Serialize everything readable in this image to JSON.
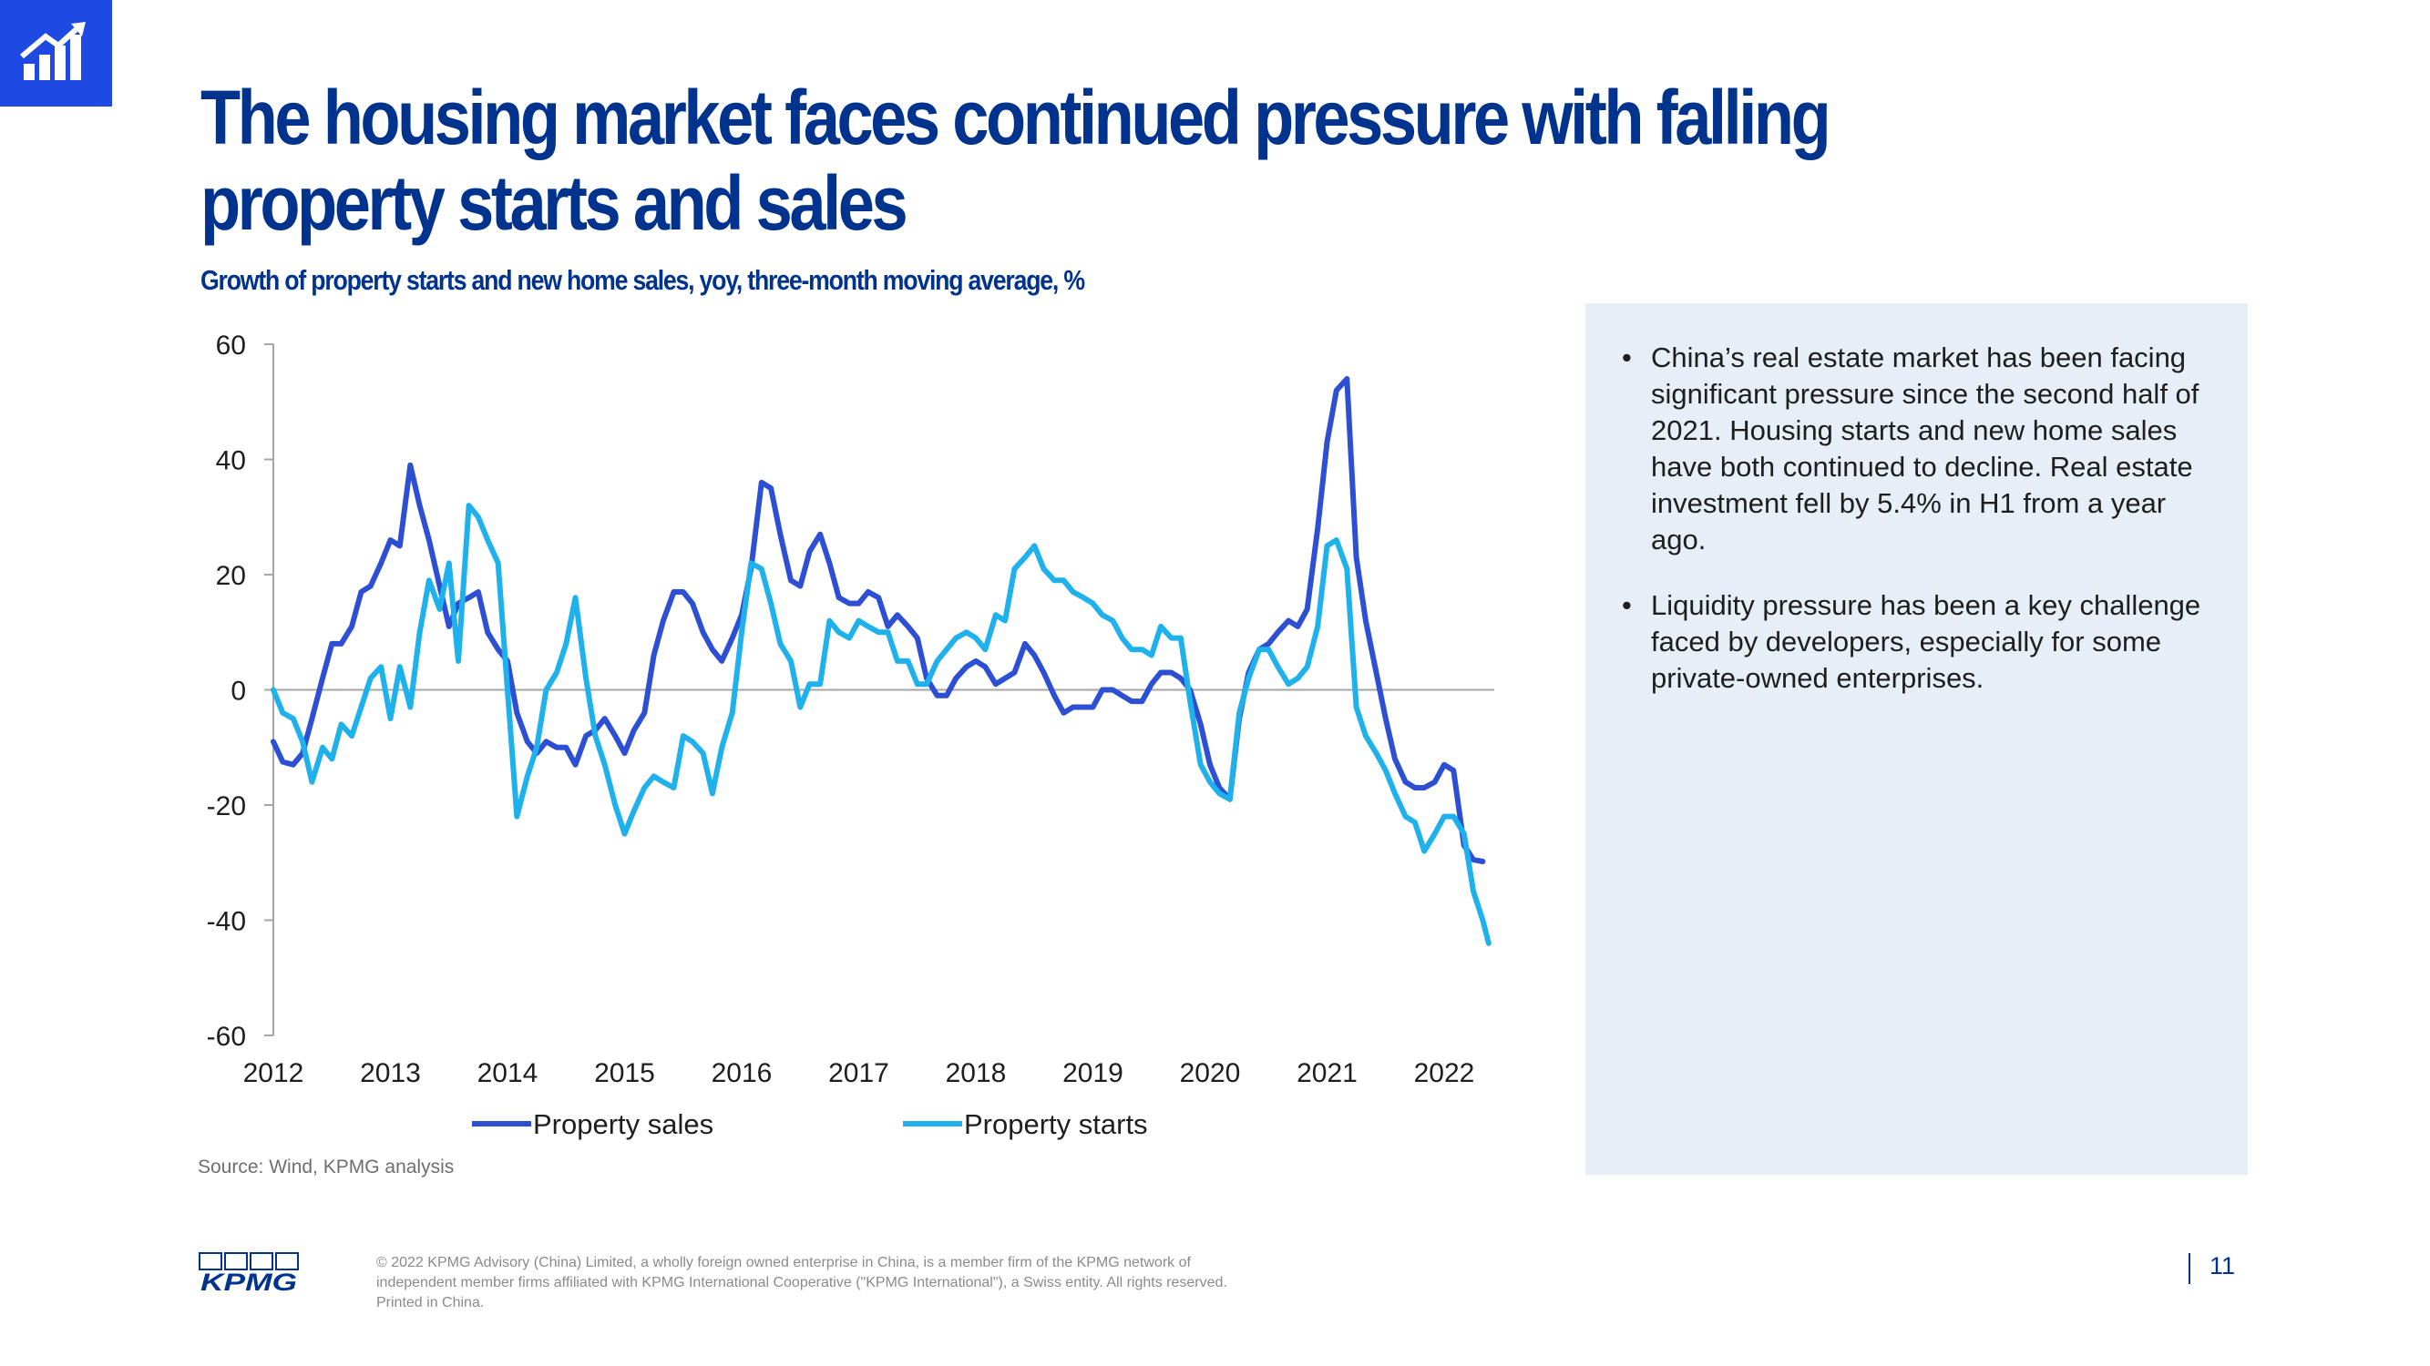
{
  "slide": {
    "title": "The housing market faces continued pressure with falling property starts and sales",
    "subtitle": "Growth of property starts and new home sales, yoy, three-month moving average, %",
    "source": "Source: Wind, KPMG analysis",
    "page_number": "11",
    "bullets": [
      "China’s real estate market has been facing significant pressure since the second half of 2021. Housing starts and new home sales have both continued to decline. Real estate investment fell by 5.4% in H1 from a year ago.",
      "Liquidity pressure has been a key challenge faced by developers, especially for some private-owned enterprises."
    ],
    "footer_lines": [
      "© 2022 KPMG Advisory (China) Limited, a wholly foreign owned enterprise in China, is a member firm of the KPMG network of",
      "independent member firms affiliated with KPMG International Cooperative (\"KPMG International\"), a Swiss entity. All rights reserved.",
      "Printed in China."
    ],
    "logo_text": "KPMG",
    "badge_icon": "bar-chart-growth-icon"
  },
  "colors": {
    "title": "#00338d",
    "badge": "#1e49e2",
    "property_sales": "#2d4fd3",
    "property_starts": "#1fb1ec",
    "panel": "#e6eef8"
  },
  "chart_data": {
    "type": "line",
    "title": "Growth of property starts and new home sales, yoy, three-month moving average, %",
    "xlabel": "",
    "ylabel": "",
    "ylim": [
      -60,
      60
    ],
    "yticks": [
      "60",
      "40",
      "20",
      "0",
      "-20",
      "-40",
      "-60"
    ],
    "xticks": [
      "2012",
      "2013",
      "2014",
      "2015",
      "2016",
      "2017",
      "2018",
      "2019",
      "2020",
      "2021",
      "2022"
    ],
    "xlim": [
      2012,
      2022.4
    ],
    "legend": "bottom",
    "grid": false,
    "series": [
      {
        "name": "Property sales",
        "color": "#2d4fd3",
        "points": [
          [
            2012.0,
            -9
          ],
          [
            2012.08,
            -12.5
          ],
          [
            2012.17,
            -13
          ],
          [
            2012.25,
            -11
          ],
          [
            2012.33,
            -5
          ],
          [
            2012.42,
            2
          ],
          [
            2012.5,
            8
          ],
          [
            2012.58,
            8
          ],
          [
            2012.67,
            11
          ],
          [
            2012.75,
            17
          ],
          [
            2012.83,
            18
          ],
          [
            2012.92,
            22
          ],
          [
            2013.0,
            26
          ],
          [
            2013.08,
            25
          ],
          [
            2013.17,
            39
          ],
          [
            2013.25,
            32
          ],
          [
            2013.33,
            26
          ],
          [
            2013.42,
            18
          ],
          [
            2013.5,
            11
          ],
          [
            2013.58,
            15
          ],
          [
            2013.67,
            16
          ],
          [
            2013.75,
            17
          ],
          [
            2013.83,
            10
          ],
          [
            2013.92,
            7
          ],
          [
            2014.0,
            5
          ],
          [
            2014.08,
            -4
          ],
          [
            2014.17,
            -9
          ],
          [
            2014.25,
            -11
          ],
          [
            2014.33,
            -9
          ],
          [
            2014.42,
            -10
          ],
          [
            2014.5,
            -10
          ],
          [
            2014.58,
            -13
          ],
          [
            2014.67,
            -8
          ],
          [
            2014.75,
            -7
          ],
          [
            2014.83,
            -5
          ],
          [
            2014.92,
            -8
          ],
          [
            2015.0,
            -11
          ],
          [
            2015.08,
            -7
          ],
          [
            2015.17,
            -4
          ],
          [
            2015.25,
            6
          ],
          [
            2015.33,
            12
          ],
          [
            2015.42,
            17
          ],
          [
            2015.5,
            17
          ],
          [
            2015.58,
            15
          ],
          [
            2015.67,
            10
          ],
          [
            2015.75,
            7
          ],
          [
            2015.83,
            5
          ],
          [
            2015.92,
            9
          ],
          [
            2016.0,
            13
          ],
          [
            2016.08,
            21
          ],
          [
            2016.17,
            36
          ],
          [
            2016.25,
            35
          ],
          [
            2016.33,
            27
          ],
          [
            2016.42,
            19
          ],
          [
            2016.5,
            18
          ],
          [
            2016.58,
            24
          ],
          [
            2016.67,
            27
          ],
          [
            2016.75,
            22
          ],
          [
            2016.83,
            16
          ],
          [
            2016.92,
            15
          ],
          [
            2017.0,
            15
          ],
          [
            2017.08,
            17
          ],
          [
            2017.17,
            16
          ],
          [
            2017.25,
            11
          ],
          [
            2017.33,
            13
          ],
          [
            2017.42,
            11
          ],
          [
            2017.5,
            9
          ],
          [
            2017.58,
            2
          ],
          [
            2017.67,
            -1
          ],
          [
            2017.75,
            -1
          ],
          [
            2017.83,
            2
          ],
          [
            2017.92,
            4
          ],
          [
            2018.0,
            5
          ],
          [
            2018.08,
            4
          ],
          [
            2018.17,
            1
          ],
          [
            2018.25,
            2
          ],
          [
            2018.33,
            3
          ],
          [
            2018.42,
            8
          ],
          [
            2018.5,
            6
          ],
          [
            2018.58,
            3
          ],
          [
            2018.67,
            -1
          ],
          [
            2018.75,
            -4
          ],
          [
            2018.83,
            -3
          ],
          [
            2018.92,
            -3
          ],
          [
            2019.0,
            -3
          ],
          [
            2019.08,
            0
          ],
          [
            2019.17,
            0
          ],
          [
            2019.25,
            -1
          ],
          [
            2019.33,
            -2
          ],
          [
            2019.42,
            -2
          ],
          [
            2019.5,
            1
          ],
          [
            2019.58,
            3
          ],
          [
            2019.67,
            3
          ],
          [
            2019.75,
            2
          ],
          [
            2019.83,
            0
          ],
          [
            2019.92,
            -6
          ],
          [
            2020.0,
            -13
          ],
          [
            2020.08,
            -17
          ],
          [
            2020.17,
            -19
          ],
          [
            2020.25,
            -5
          ],
          [
            2020.33,
            3
          ],
          [
            2020.42,
            7
          ],
          [
            2020.5,
            8
          ],
          [
            2020.58,
            10
          ],
          [
            2020.67,
            12
          ],
          [
            2020.75,
            11
          ],
          [
            2020.83,
            14
          ],
          [
            2020.92,
            28
          ],
          [
            2021.0,
            43
          ],
          [
            2021.08,
            52
          ],
          [
            2021.17,
            54
          ],
          [
            2021.25,
            23
          ],
          [
            2021.33,
            12
          ],
          [
            2021.42,
            3
          ],
          [
            2021.5,
            -5
          ],
          [
            2021.58,
            -12
          ],
          [
            2021.67,
            -16
          ],
          [
            2021.75,
            -17
          ],
          [
            2021.83,
            -17
          ],
          [
            2021.92,
            -16
          ],
          [
            2022.0,
            -13
          ],
          [
            2022.08,
            -14
          ],
          [
            2022.17,
            -27
          ],
          [
            2022.25,
            -29.5
          ],
          [
            2022.33,
            -29.8
          ]
        ]
      },
      {
        "name": "Property starts",
        "color": "#1fb1ec",
        "points": [
          [
            2012.0,
            0
          ],
          [
            2012.08,
            -4
          ],
          [
            2012.17,
            -5
          ],
          [
            2012.25,
            -9
          ],
          [
            2012.33,
            -16
          ],
          [
            2012.42,
            -10
          ],
          [
            2012.5,
            -12
          ],
          [
            2012.58,
            -6
          ],
          [
            2012.67,
            -8
          ],
          [
            2012.75,
            -3
          ],
          [
            2012.83,
            2
          ],
          [
            2012.92,
            4
          ],
          [
            2013.0,
            -5
          ],
          [
            2013.08,
            4
          ],
          [
            2013.17,
            -3
          ],
          [
            2013.25,
            10
          ],
          [
            2013.33,
            19
          ],
          [
            2013.42,
            14
          ],
          [
            2013.5,
            22
          ],
          [
            2013.58,
            5
          ],
          [
            2013.67,
            32
          ],
          [
            2013.75,
            30
          ],
          [
            2013.83,
            26
          ],
          [
            2013.92,
            22
          ],
          [
            2014.0,
            0
          ],
          [
            2014.08,
            -22
          ],
          [
            2014.17,
            -15
          ],
          [
            2014.25,
            -10
          ],
          [
            2014.33,
            0
          ],
          [
            2014.42,
            3
          ],
          [
            2014.5,
            8
          ],
          [
            2014.58,
            16
          ],
          [
            2014.67,
            2
          ],
          [
            2014.75,
            -8
          ],
          [
            2014.83,
            -13
          ],
          [
            2014.92,
            -20
          ],
          [
            2015.0,
            -25
          ],
          [
            2015.08,
            -21
          ],
          [
            2015.17,
            -17
          ],
          [
            2015.25,
            -15
          ],
          [
            2015.33,
            -16
          ],
          [
            2015.42,
            -17
          ],
          [
            2015.5,
            -8
          ],
          [
            2015.58,
            -9
          ],
          [
            2015.67,
            -11
          ],
          [
            2015.75,
            -18
          ],
          [
            2015.83,
            -10
          ],
          [
            2015.92,
            -4
          ],
          [
            2016.0,
            10
          ],
          [
            2016.08,
            22
          ],
          [
            2016.17,
            21
          ],
          [
            2016.25,
            15
          ],
          [
            2016.33,
            8
          ],
          [
            2016.42,
            5
          ],
          [
            2016.5,
            -3
          ],
          [
            2016.58,
            1
          ],
          [
            2016.67,
            1
          ],
          [
            2016.75,
            12
          ],
          [
            2016.83,
            10
          ],
          [
            2016.92,
            9
          ],
          [
            2017.0,
            12
          ],
          [
            2017.08,
            11
          ],
          [
            2017.17,
            10
          ],
          [
            2017.25,
            10
          ],
          [
            2017.33,
            5
          ],
          [
            2017.42,
            5
          ],
          [
            2017.5,
            1
          ],
          [
            2017.58,
            1
          ],
          [
            2017.67,
            5
          ],
          [
            2017.75,
            7
          ],
          [
            2017.83,
            9
          ],
          [
            2017.92,
            10
          ],
          [
            2018.0,
            9
          ],
          [
            2018.08,
            7
          ],
          [
            2018.17,
            13
          ],
          [
            2018.25,
            12
          ],
          [
            2018.33,
            21
          ],
          [
            2018.42,
            23
          ],
          [
            2018.5,
            25
          ],
          [
            2018.58,
            21
          ],
          [
            2018.67,
            19
          ],
          [
            2018.75,
            19
          ],
          [
            2018.83,
            17
          ],
          [
            2018.92,
            16
          ],
          [
            2019.0,
            15
          ],
          [
            2019.08,
            13
          ],
          [
            2019.17,
            12
          ],
          [
            2019.25,
            9
          ],
          [
            2019.33,
            7
          ],
          [
            2019.42,
            7
          ],
          [
            2019.5,
            6
          ],
          [
            2019.58,
            11
          ],
          [
            2019.67,
            9
          ],
          [
            2019.75,
            9
          ],
          [
            2019.83,
            -2
          ],
          [
            2019.92,
            -13
          ],
          [
            2020.0,
            -16
          ],
          [
            2020.08,
            -18
          ],
          [
            2020.17,
            -19
          ],
          [
            2020.25,
            -4
          ],
          [
            2020.33,
            2
          ],
          [
            2020.42,
            7
          ],
          [
            2020.5,
            7
          ],
          [
            2020.58,
            4
          ],
          [
            2020.67,
            1
          ],
          [
            2020.75,
            2
          ],
          [
            2020.83,
            4
          ],
          [
            2020.92,
            11
          ],
          [
            2021.0,
            25
          ],
          [
            2021.08,
            26
          ],
          [
            2021.17,
            21
          ],
          [
            2021.25,
            -3
          ],
          [
            2021.33,
            -8
          ],
          [
            2021.42,
            -11
          ],
          [
            2021.5,
            -14
          ],
          [
            2021.58,
            -18
          ],
          [
            2021.67,
            -22
          ],
          [
            2021.75,
            -23
          ],
          [
            2021.83,
            -28
          ],
          [
            2021.92,
            -25
          ],
          [
            2022.0,
            -22
          ],
          [
            2022.08,
            -22
          ],
          [
            2022.17,
            -25
          ],
          [
            2022.25,
            -35
          ],
          [
            2022.33,
            -40
          ],
          [
            2022.38,
            -44
          ]
        ]
      }
    ]
  }
}
